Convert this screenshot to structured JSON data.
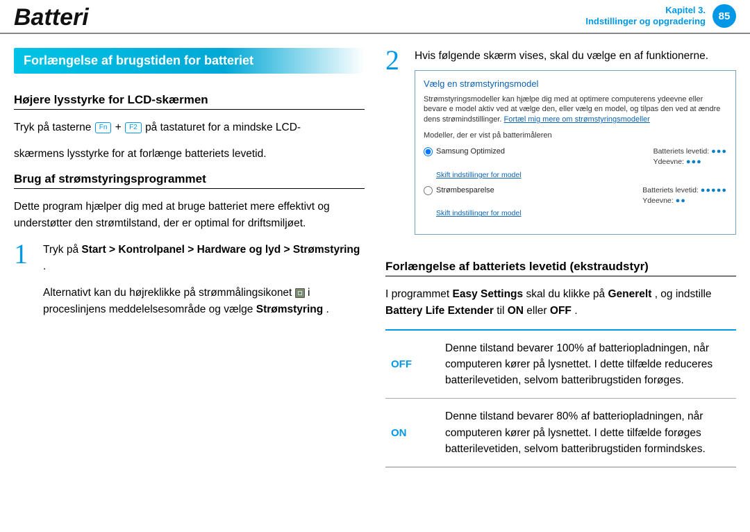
{
  "header": {
    "title": "Batteri",
    "chapter_line1": "Kapitel 3.",
    "chapter_line2": "Indstillinger og opgradering",
    "page_number": "85"
  },
  "banner": "Forlængelse af brugstiden for batteriet",
  "left": {
    "h1": "Højere lysstyrke for LCD-skærmen",
    "p1a": "Tryk på tasterne ",
    "key_fn": "Fn",
    "plus": " + ",
    "key_f2": "F2",
    "p1b": " på tastaturet for a mindske LCD-",
    "p1c": "skærmens lysstyrke for at forlænge batteriets levetid.",
    "h2": "Brug af strømstyringsprogrammet",
    "p2": "Dette program hjælper dig med at bruge batteriet mere effektivt og understøtter den strømtilstand, der er optimal for driftsmiljøet.",
    "step1_num": "1",
    "step1_a": "Tryk på ",
    "step1_b": "Start > Kontrolpanel > Hardware og lyd > Strømstyring",
    "step1_c": ".",
    "step1_d": "Alternativt kan du højreklikke på strømmålingsikonet ",
    "step1_e": " i proceslinjens meddelelsesområde og vælge ",
    "step1_f": "Strømstyring",
    "step1_g": "."
  },
  "right": {
    "step2_num": "2",
    "step2_text": "Hvis følgende skærm vises, skal du vælge en af funktionerne.",
    "dialog": {
      "title": "Vælg en strømstyringsmodel",
      "desc_a": "Strømstyringsmodeller kan hjælpe dig med at optimere computerens ydeevne eller bevare e model aktiv ved at vælge den, eller vælg en model, og tilpas den ved at ændre dens strømindstillinger. ",
      "desc_link": "Fortæl mig mere om strømstyringsmodeller",
      "note": "Modeller, der er vist på batterimåleren",
      "plan1_name": "Samsung Optimized",
      "plan1_change": "Skift indstillinger for model",
      "plan1_life_label": "Batteriets levetid:",
      "plan1_life_dots": "●●●",
      "plan1_perf_label": "Ydeevne:",
      "plan1_perf_dots": "●●●",
      "plan2_name": "Strømbesparelse",
      "plan2_change": "Skift indstillinger for model",
      "plan2_life_label": "Batteriets levetid:",
      "plan2_life_dots": "●●●●●",
      "plan2_perf_label": "Ydeevne:",
      "plan2_perf_dots": "●●"
    },
    "h3": "Forlængelse af batteriets levetid (ekstraudstyr)",
    "p3_a": "I programmet ",
    "p3_b": "Easy Settings",
    "p3_c": " skal du klikke på ",
    "p3_d": "Generelt",
    "p3_e": ", og indstille ",
    "p3_f": "Battery Life Extender",
    "p3_g": " til ",
    "p3_h": "ON",
    "p3_i": " eller ",
    "p3_j": "OFF",
    "p3_k": ".",
    "tbl": {
      "off_label": "OFF",
      "off_desc": "Denne tilstand bevarer 100% af batteriopladningen, når computeren kører på lysnettet.\nI dette tilfælde reduceres batterilevetiden, selvom batteribrugstiden forøges.",
      "on_label": "ON",
      "on_desc": "Denne tilstand bevarer 80% af batteriopladningen, når computeren kører på lysnettet.\nI dette tilfælde forøges batterilevetiden, selvom batteribrugstiden formindskes."
    }
  }
}
